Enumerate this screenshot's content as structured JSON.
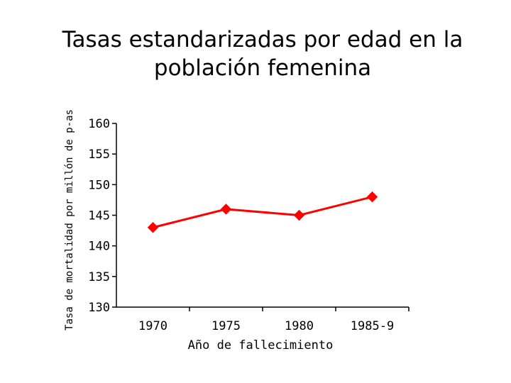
{
  "chart_data": {
    "type": "line",
    "title": "Tasas estandarizadas por edad en la población femenina",
    "xlabel": "Año de fallecimiento",
    "ylabel": "Tasa de mortalidad por millón de p-as",
    "categories": [
      "1970",
      "1975",
      "1980",
      "1985-9"
    ],
    "series": [
      {
        "values": [
          143,
          146,
          145,
          148
        ]
      }
    ],
    "ylim": [
      130,
      160
    ],
    "yticks": [
      160,
      155,
      150,
      145,
      140,
      135,
      130
    ],
    "grid": false,
    "legend": "none",
    "colors": {
      "series": "#ff0000",
      "axis": "#000000"
    }
  }
}
